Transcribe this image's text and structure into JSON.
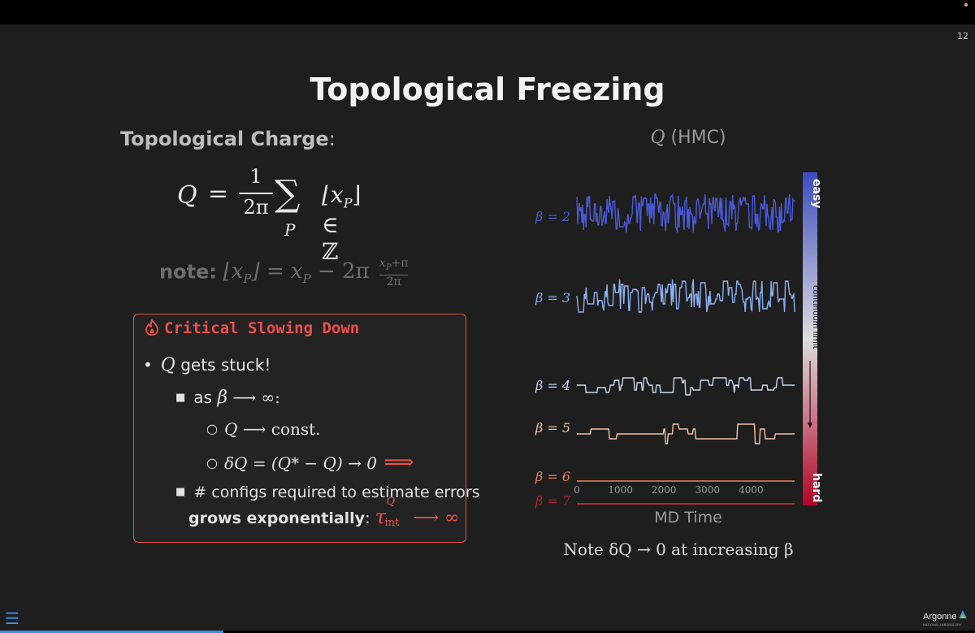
{
  "page_number": "12",
  "title": "Topological Freezing",
  "charge": {
    "heading_bold": "Topological Charge",
    "heading_suffix": ":",
    "formula": {
      "lhs": "Q",
      "eq": "=",
      "frac_num": "1",
      "frac_den": "2π",
      "sum": "∑",
      "sum_sub": "P",
      "term": "⌊x",
      "term_sub": "P",
      "term_close": "⌋ ∈ ℤ"
    }
  },
  "note": {
    "label": "note:",
    "expr_left": "⌊x",
    "sub_p": "P",
    "expr_mid": "⌋ = x",
    "expr_right": " − 2π",
    "frac_num": "x",
    "frac_num_rest": "+π",
    "frac_den": "2π"
  },
  "box": {
    "title": "Critical Slowing Down",
    "icon": "flame-icon",
    "bullet1_q": "Q",
    "bullet1_text": " gets stuck!",
    "sub1_prefix": "as ",
    "sub1_beta": "β",
    "sub1_arrow": " ⟶ ∞:",
    "subsub1_q": "Q",
    "subsub1_text": " ⟶ const.",
    "subsub2_text": "δQ = (Q* − Q) → 0",
    "subsub2_arrow": " ⟹",
    "sub2_line1": "# configs required to estimate errors",
    "sub2_bold": "grows exponentially",
    "sub2_colon": ": ",
    "sub2_tau": "τ",
    "sub2_sup": "Q",
    "sub2_sub": "int",
    "sub2_end": " ⟶ ∞"
  },
  "chart_data": {
    "type": "line",
    "title_q": "Q",
    "title_rest": " (HMC)",
    "xlabel": "MD Time",
    "x_ticks": [
      "0",
      "1000",
      "2000",
      "3000",
      "4000"
    ],
    "xlim": [
      0,
      5000
    ],
    "colorbar": {
      "top_label": "easy",
      "middle_label": "continuum limit",
      "bottom_label": "hard"
    },
    "series": [
      {
        "name": "β = 2",
        "color": "#4a5ad4",
        "center": 0,
        "amplitude": 24,
        "jump": 0.85,
        "steps": 1
      },
      {
        "name": "β = 3",
        "color": "#8cb0ee",
        "center": 0,
        "amplitude": 20,
        "jump": 0.55,
        "steps": 2
      },
      {
        "name": "β = 4",
        "color": "#c8d8f2",
        "center": 0,
        "amplitude": 11,
        "jump": 0.2,
        "steps": 3
      },
      {
        "name": "β = 5",
        "color": "#f2c2a8",
        "center": 0,
        "amplitude": 12,
        "jump": 0.07,
        "steps": 6
      },
      {
        "name": "β = 6",
        "color": "#e8855f",
        "center": 0,
        "amplitude": 4,
        "jump": 0.01,
        "steps": 20
      },
      {
        "name": "β = 7",
        "color": "#b3243c",
        "center": 0,
        "amplitude": 0,
        "jump": 0,
        "steps": 1
      }
    ],
    "footer_note": "Note δQ → 0 at increasing β"
  }
}
